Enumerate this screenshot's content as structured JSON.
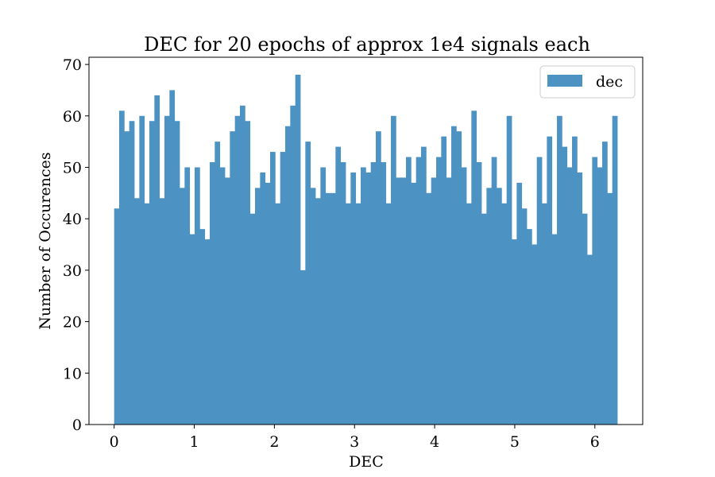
{
  "chart_data": {
    "type": "bar",
    "title": "DEC for 20 epochs of approx 1e4 signals each",
    "xlabel": "DEC",
    "ylabel": "Number of Occurences",
    "xlim": [
      -0.314,
      6.597
    ],
    "ylim": [
      0,
      71.4
    ],
    "x_ticks": [
      0,
      1,
      2,
      3,
      4,
      5,
      6
    ],
    "y_ticks": [
      0,
      10,
      20,
      30,
      40,
      50,
      60,
      70
    ],
    "bin_start": 0,
    "bin_width": 0.0628,
    "grid": false,
    "legend": {
      "position": "top-right",
      "entries": [
        "dec"
      ]
    },
    "color": "#4c93c3",
    "series": [
      {
        "name": "dec",
        "values": [
          42,
          61,
          57,
          59,
          44,
          60,
          43,
          59,
          64,
          44,
          60,
          65,
          59,
          46,
          50,
          37,
          50,
          38,
          36,
          51,
          55,
          50,
          48,
          57,
          60,
          62,
          59,
          41,
          46,
          49,
          47,
          53,
          43,
          53,
          58,
          62,
          68,
          30,
          55,
          46,
          44,
          50,
          45,
          45,
          54,
          51,
          43,
          49,
          43,
          50,
          49,
          51,
          57,
          51,
          43,
          60,
          48,
          48,
          52,
          47,
          52,
          54,
          45,
          48,
          52,
          56,
          48,
          58,
          57,
          50,
          43,
          61,
          51,
          41,
          46,
          52,
          46,
          43,
          60,
          36,
          47,
          42,
          38,
          35,
          52,
          43,
          56,
          37,
          60,
          54,
          50,
          56,
          49,
          41,
          33,
          52,
          50,
          55,
          45,
          60
        ]
      }
    ]
  }
}
